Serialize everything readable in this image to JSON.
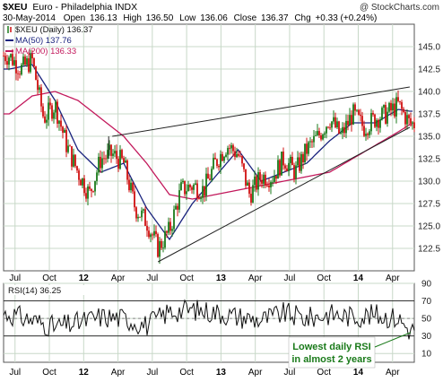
{
  "header": {
    "symbol": "$XEU",
    "description": "Euro - Philadelphia INDX",
    "copyright": "@ StockCharts.com",
    "date": "30-May-2014",
    "open_label": "Open",
    "open": "136.13",
    "high_label": "High",
    "high": "136.50",
    "low_label": "Low",
    "low": "136.06",
    "close_label": "Close",
    "close": "136.37",
    "chg_label": "Chg",
    "chg": "+0.33 (+0.24%)"
  },
  "colors": {
    "price_bars": "#1a7a1a",
    "price_bars_down": "#d01010",
    "ma50": "#1a237e",
    "ma200": "#c2185b",
    "panel_bg_top": "#ffffff",
    "grid": "#c8d8c8",
    "annotation": "#1a7a1a"
  },
  "chart_data": [
    {
      "type": "line",
      "panel": "price",
      "series": [
        {
          "name": "$XEU (Daily) 136.37",
          "x": [
            "2011-06",
            "2011-07",
            "2011-08",
            "2011-09",
            "2011-10",
            "2011-11",
            "2011-12",
            "2012-01",
            "2012-02",
            "2012-03",
            "2012-04",
            "2012-05",
            "2012-06",
            "2012-07",
            "2012-08",
            "2012-09",
            "2012-10",
            "2012-11",
            "2012-12",
            "2013-01",
            "2013-02",
            "2013-03",
            "2013-04",
            "2013-05",
            "2013-06",
            "2013-07",
            "2013-08",
            "2013-09",
            "2013-10",
            "2013-11",
            "2013-12",
            "2014-01",
            "2014-02",
            "2014-03",
            "2014-04",
            "2014-05"
          ],
          "values": [
            144.0,
            142.5,
            143.5,
            137.0,
            138.5,
            134.0,
            131.0,
            128.5,
            132.5,
            133.0,
            132.0,
            127.0,
            125.5,
            122.5,
            124.5,
            129.0,
            129.5,
            129.0,
            132.0,
            134.0,
            133.0,
            128.5,
            130.5,
            130.5,
            132.5,
            131.0,
            133.5,
            135.0,
            137.0,
            135.0,
            137.5,
            136.0,
            137.0,
            137.5,
            138.5,
            136.4
          ]
        },
        {
          "name": "MA(50) 137.76",
          "x": [
            "2011-06",
            "2011-08",
            "2011-10",
            "2011-12",
            "2012-02",
            "2012-04",
            "2012-06",
            "2012-08",
            "2012-10",
            "2012-12",
            "2013-02",
            "2013-04",
            "2013-06",
            "2013-08",
            "2013-10",
            "2013-12",
            "2014-02",
            "2014-04",
            "2014-05"
          ],
          "values": [
            142.5,
            143.0,
            139.0,
            133.5,
            131.0,
            132.0,
            127.0,
            123.5,
            127.5,
            130.5,
            133.5,
            130.0,
            131.0,
            132.0,
            134.5,
            136.5,
            136.5,
            138.0,
            137.8
          ]
        },
        {
          "name": "MA(200) 136.33",
          "x": [
            "2011-06",
            "2011-08",
            "2011-10",
            "2011-12",
            "2012-02",
            "2012-04",
            "2012-06",
            "2012-08",
            "2012-10",
            "2012-12",
            "2013-02",
            "2013-04",
            "2013-06",
            "2013-08",
            "2013-10",
            "2013-12",
            "2014-02",
            "2014-04",
            "2014-05"
          ],
          "values": [
            137.5,
            139.5,
            140.0,
            139.0,
            137.0,
            135.0,
            132.0,
            128.5,
            128.0,
            128.5,
            129.0,
            129.5,
            130.0,
            130.5,
            131.0,
            132.5,
            134.0,
            135.5,
            136.3
          ]
        }
      ],
      "trendlines": {
        "upper": {
          "from": [
            "2012-03",
            135.0
          ],
          "to": [
            "2014-05",
            140.5
          ]
        },
        "lower": {
          "from": [
            "2012-07",
            121.0
          ],
          "to": [
            "2014-05",
            136.0
          ]
        }
      },
      "ylim": [
        120,
        147.5
      ],
      "yticks": [
        122.5,
        125.0,
        127.5,
        130.0,
        132.5,
        135.0,
        137.5,
        140.0,
        142.5,
        145.0
      ],
      "xticks": [
        "Jul",
        "Oct",
        "12",
        "Apr",
        "Jul",
        "Oct",
        "13",
        "Apr",
        "Jul",
        "Oct",
        "14",
        "Apr"
      ],
      "legend_placement": "top-left",
      "grid": true
    },
    {
      "type": "line",
      "panel": "rsi",
      "series": [
        {
          "name": "RSI(14) 36.25",
          "x": [
            "2011-06",
            "2011-08",
            "2011-10",
            "2011-12",
            "2012-02",
            "2012-04",
            "2012-06",
            "2012-08",
            "2012-10",
            "2012-12",
            "2013-02",
            "2013-04",
            "2013-06",
            "2013-08",
            "2013-10",
            "2013-12",
            "2014-02",
            "2014-04",
            "2014-05"
          ],
          "values": [
            55,
            48,
            40,
            45,
            52,
            50,
            42,
            58,
            60,
            57,
            52,
            48,
            56,
            50,
            55,
            52,
            54,
            50,
            36.25
          ]
        }
      ],
      "ylim": [
        0,
        90
      ],
      "yticks": [
        10,
        30,
        50,
        70,
        90
      ],
      "reference_lines": [
        30,
        70
      ],
      "xticks": [
        "Jul",
        "Oct",
        "12",
        "Apr",
        "Jul",
        "Oct",
        "13",
        "Apr",
        "Jul",
        "Oct",
        "14",
        "Apr"
      ],
      "annotation": "Lowest daily RSI\nin almost 2 years"
    }
  ]
}
